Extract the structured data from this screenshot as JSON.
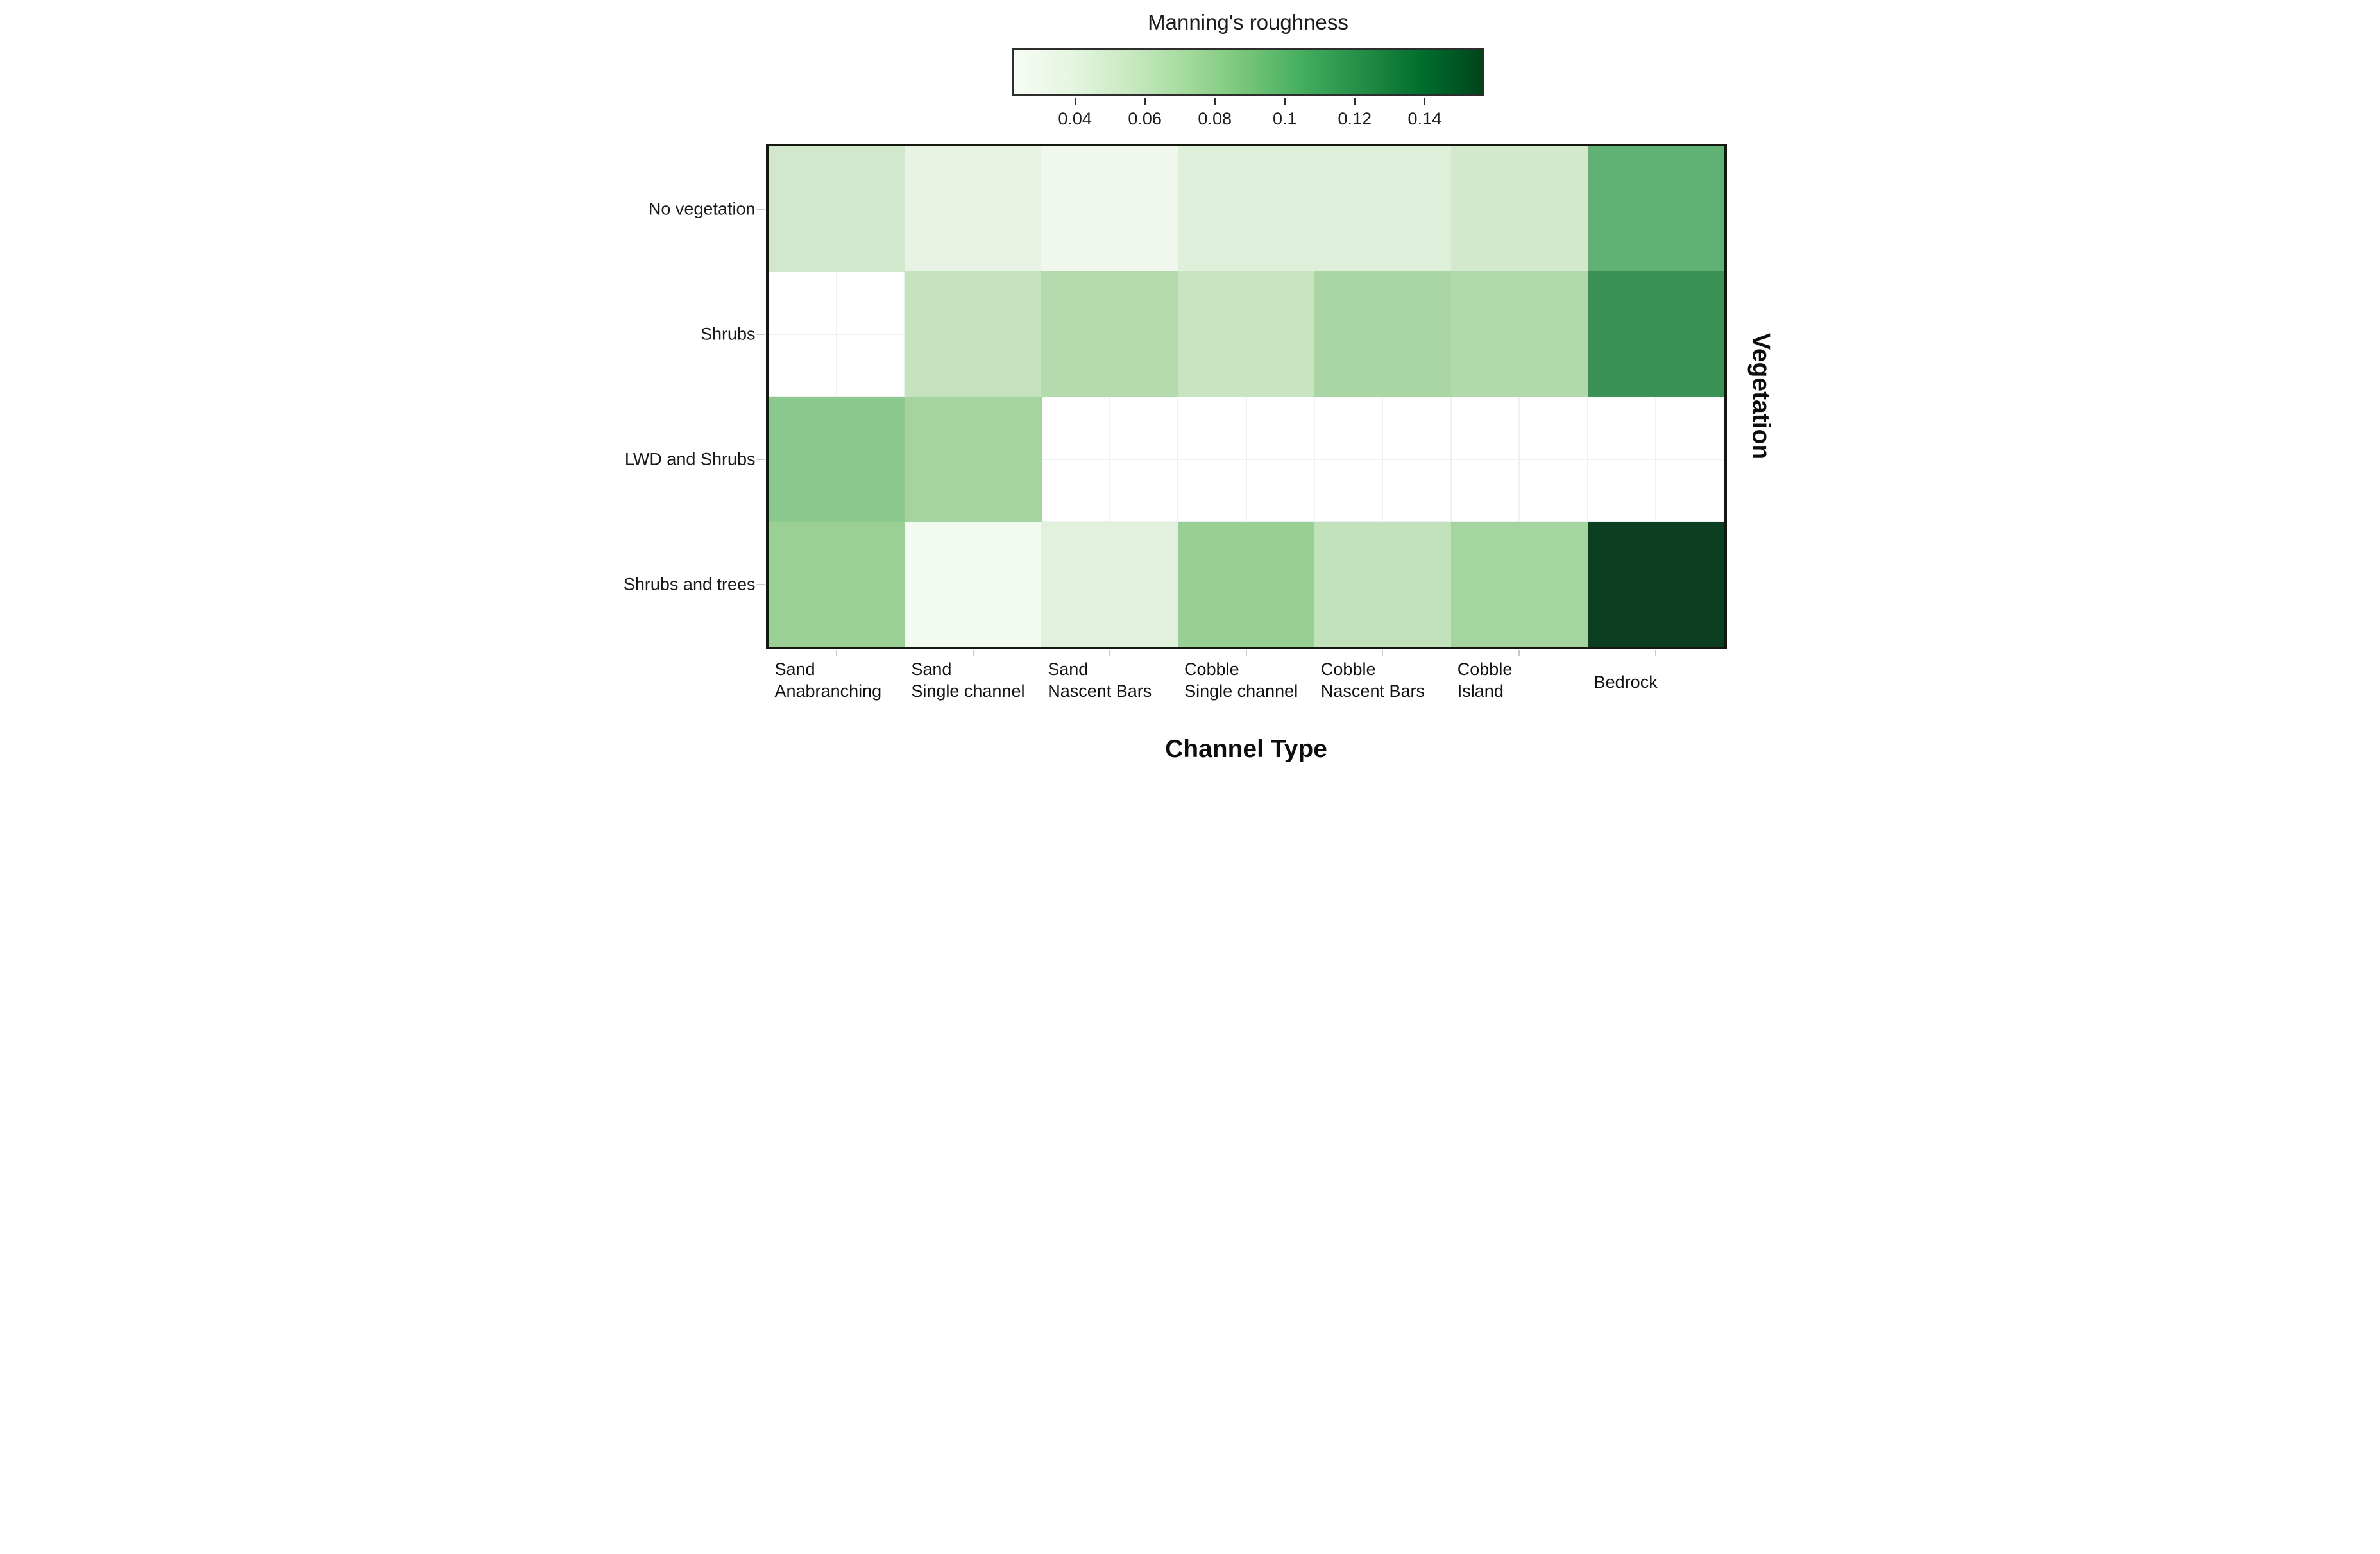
{
  "chart_data": {
    "type": "heatmap",
    "xlabel": "Channel Type",
    "ylabel": "Vegetation",
    "x_categories": [
      "Sand Anabranching",
      "Sand Single channel",
      "Sand Nascent Bars",
      "Cobble Single channel",
      "Cobble Nascent Bars",
      "Cobble Island",
      "Bedrock"
    ],
    "x_category_lines": [
      [
        "Sand",
        "Anabranching"
      ],
      [
        "Sand",
        "Single channel"
      ],
      [
        "Sand",
        "Nascent Bars"
      ],
      [
        "Cobble",
        "Single channel"
      ],
      [
        "Cobble",
        "Nascent Bars"
      ],
      [
        "Cobble",
        "Island"
      ],
      [
        "Bedrock"
      ]
    ],
    "y_categories": [
      "No vegetation",
      "Shrubs",
      "LWD and Shrubs",
      "Shrubs and trees"
    ],
    "colorbar": {
      "title": "Manning's roughness",
      "vmin": 0.022,
      "vmax": 0.157,
      "tick_labels": [
        "0.04",
        "0.06",
        "0.08",
        "0.1",
        "0.12",
        "0.14"
      ],
      "gradient": [
        "#f7fcf5",
        "#e5f5e0",
        "#c7e9c0",
        "#a1d99b",
        "#74c476",
        "#41ab5d",
        "#238b45",
        "#006d2c",
        "#00441b"
      ]
    },
    "values": [
      [
        0.052,
        0.037,
        0.029,
        0.043,
        0.043,
        0.051,
        0.1
      ],
      [
        null,
        0.06,
        0.068,
        0.058,
        0.072,
        0.067,
        0.115
      ],
      [
        0.082,
        0.071,
        null,
        null,
        null,
        null,
        null
      ],
      [
        0.076,
        0.026,
        0.041,
        0.077,
        0.059,
        0.072,
        0.155
      ]
    ],
    "cell_colors": [
      [
        "#d2e8cc",
        "#e8f3e5",
        "#f0f8ed",
        "#def0d9",
        "#def0d9",
        "#d2e9cc",
        "#5fb273"
      ],
      [
        null,
        "#c5e3be",
        "#b4daae",
        "#c8e4c1",
        "#aad6a5",
        "#b2d9ac",
        "#3b9257"
      ],
      [
        "#8bc98f",
        "#a5d4a1",
        null,
        null,
        null,
        null,
        null
      ],
      [
        "#9ad096",
        "#f3faf0",
        "#e2f1dd",
        "#98cf94",
        "#c2e2bb",
        "#a4d49f",
        "#0c3f22"
      ]
    ],
    "grid_line_color": "#eef0f4",
    "panel_border_color": "#14180f",
    "tick_mark_color": "#c6c9cf",
    "legend_position": "top",
    "grid": "visible only behind missing (white) cells"
  }
}
